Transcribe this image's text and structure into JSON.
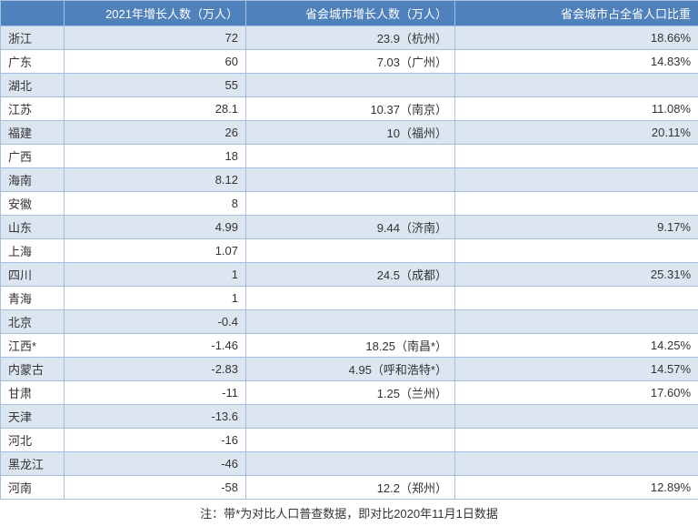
{
  "table": {
    "headers": [
      "",
      "2021年增长人数（万人）",
      "省会城市增长人数（万人）",
      "省会城市占全省人口比重"
    ],
    "rows": [
      {
        "province": "浙江",
        "growth": "72",
        "capital_growth": "23.9（杭州）",
        "ratio": "18.66%"
      },
      {
        "province": "广东",
        "growth": "60",
        "capital_growth": "7.03（广州）",
        "ratio": "14.83%"
      },
      {
        "province": "湖北",
        "growth": "55",
        "capital_growth": "",
        "ratio": ""
      },
      {
        "province": "江苏",
        "growth": "28.1",
        "capital_growth": "10.37（南京）",
        "ratio": "11.08%"
      },
      {
        "province": "福建",
        "growth": "26",
        "capital_growth": "10（福州）",
        "ratio": "20.11%"
      },
      {
        "province": "广西",
        "growth": "18",
        "capital_growth": "",
        "ratio": ""
      },
      {
        "province": "海南",
        "growth": "8.12",
        "capital_growth": "",
        "ratio": ""
      },
      {
        "province": "安徽",
        "growth": "8",
        "capital_growth": "",
        "ratio": ""
      },
      {
        "province": "山东",
        "growth": "4.99",
        "capital_growth": "9.44（济南）",
        "ratio": "9.17%"
      },
      {
        "province": "上海",
        "growth": "1.07",
        "capital_growth": "",
        "ratio": ""
      },
      {
        "province": "四川",
        "growth": "1",
        "capital_growth": "24.5（成都）",
        "ratio": "25.31%"
      },
      {
        "province": "青海",
        "growth": "1",
        "capital_growth": "",
        "ratio": ""
      },
      {
        "province": "北京",
        "growth": "-0.4",
        "capital_growth": "",
        "ratio": ""
      },
      {
        "province": "江西*",
        "growth": "-1.46",
        "capital_growth": "18.25（南昌*）",
        "ratio": "14.25%"
      },
      {
        "province": "内蒙古",
        "growth": "-2.83",
        "capital_growth": "4.95（呼和浩特*）",
        "ratio": "14.57%"
      },
      {
        "province": "甘肃",
        "growth": "-11",
        "capital_growth": "1.25（兰州）",
        "ratio": "17.60%"
      },
      {
        "province": "天津",
        "growth": "-13.6",
        "capital_growth": "",
        "ratio": ""
      },
      {
        "province": "河北",
        "growth": "-16",
        "capital_growth": "",
        "ratio": ""
      },
      {
        "province": "黑龙江",
        "growth": "-46",
        "capital_growth": "",
        "ratio": ""
      },
      {
        "province": "河南",
        "growth": "-58",
        "capital_growth": "12.2（郑州）",
        "ratio": "12.89%"
      }
    ],
    "footnote": "注：带*为对比人口普查数据，即对比2020年11月1日数据",
    "header_bg": "#4f81bd",
    "header_fg": "#ffffff",
    "row_odd_bg": "#dce6f1",
    "row_even_bg": "#ffffff",
    "border_color": "#a6bfde",
    "font_size": 13
  }
}
